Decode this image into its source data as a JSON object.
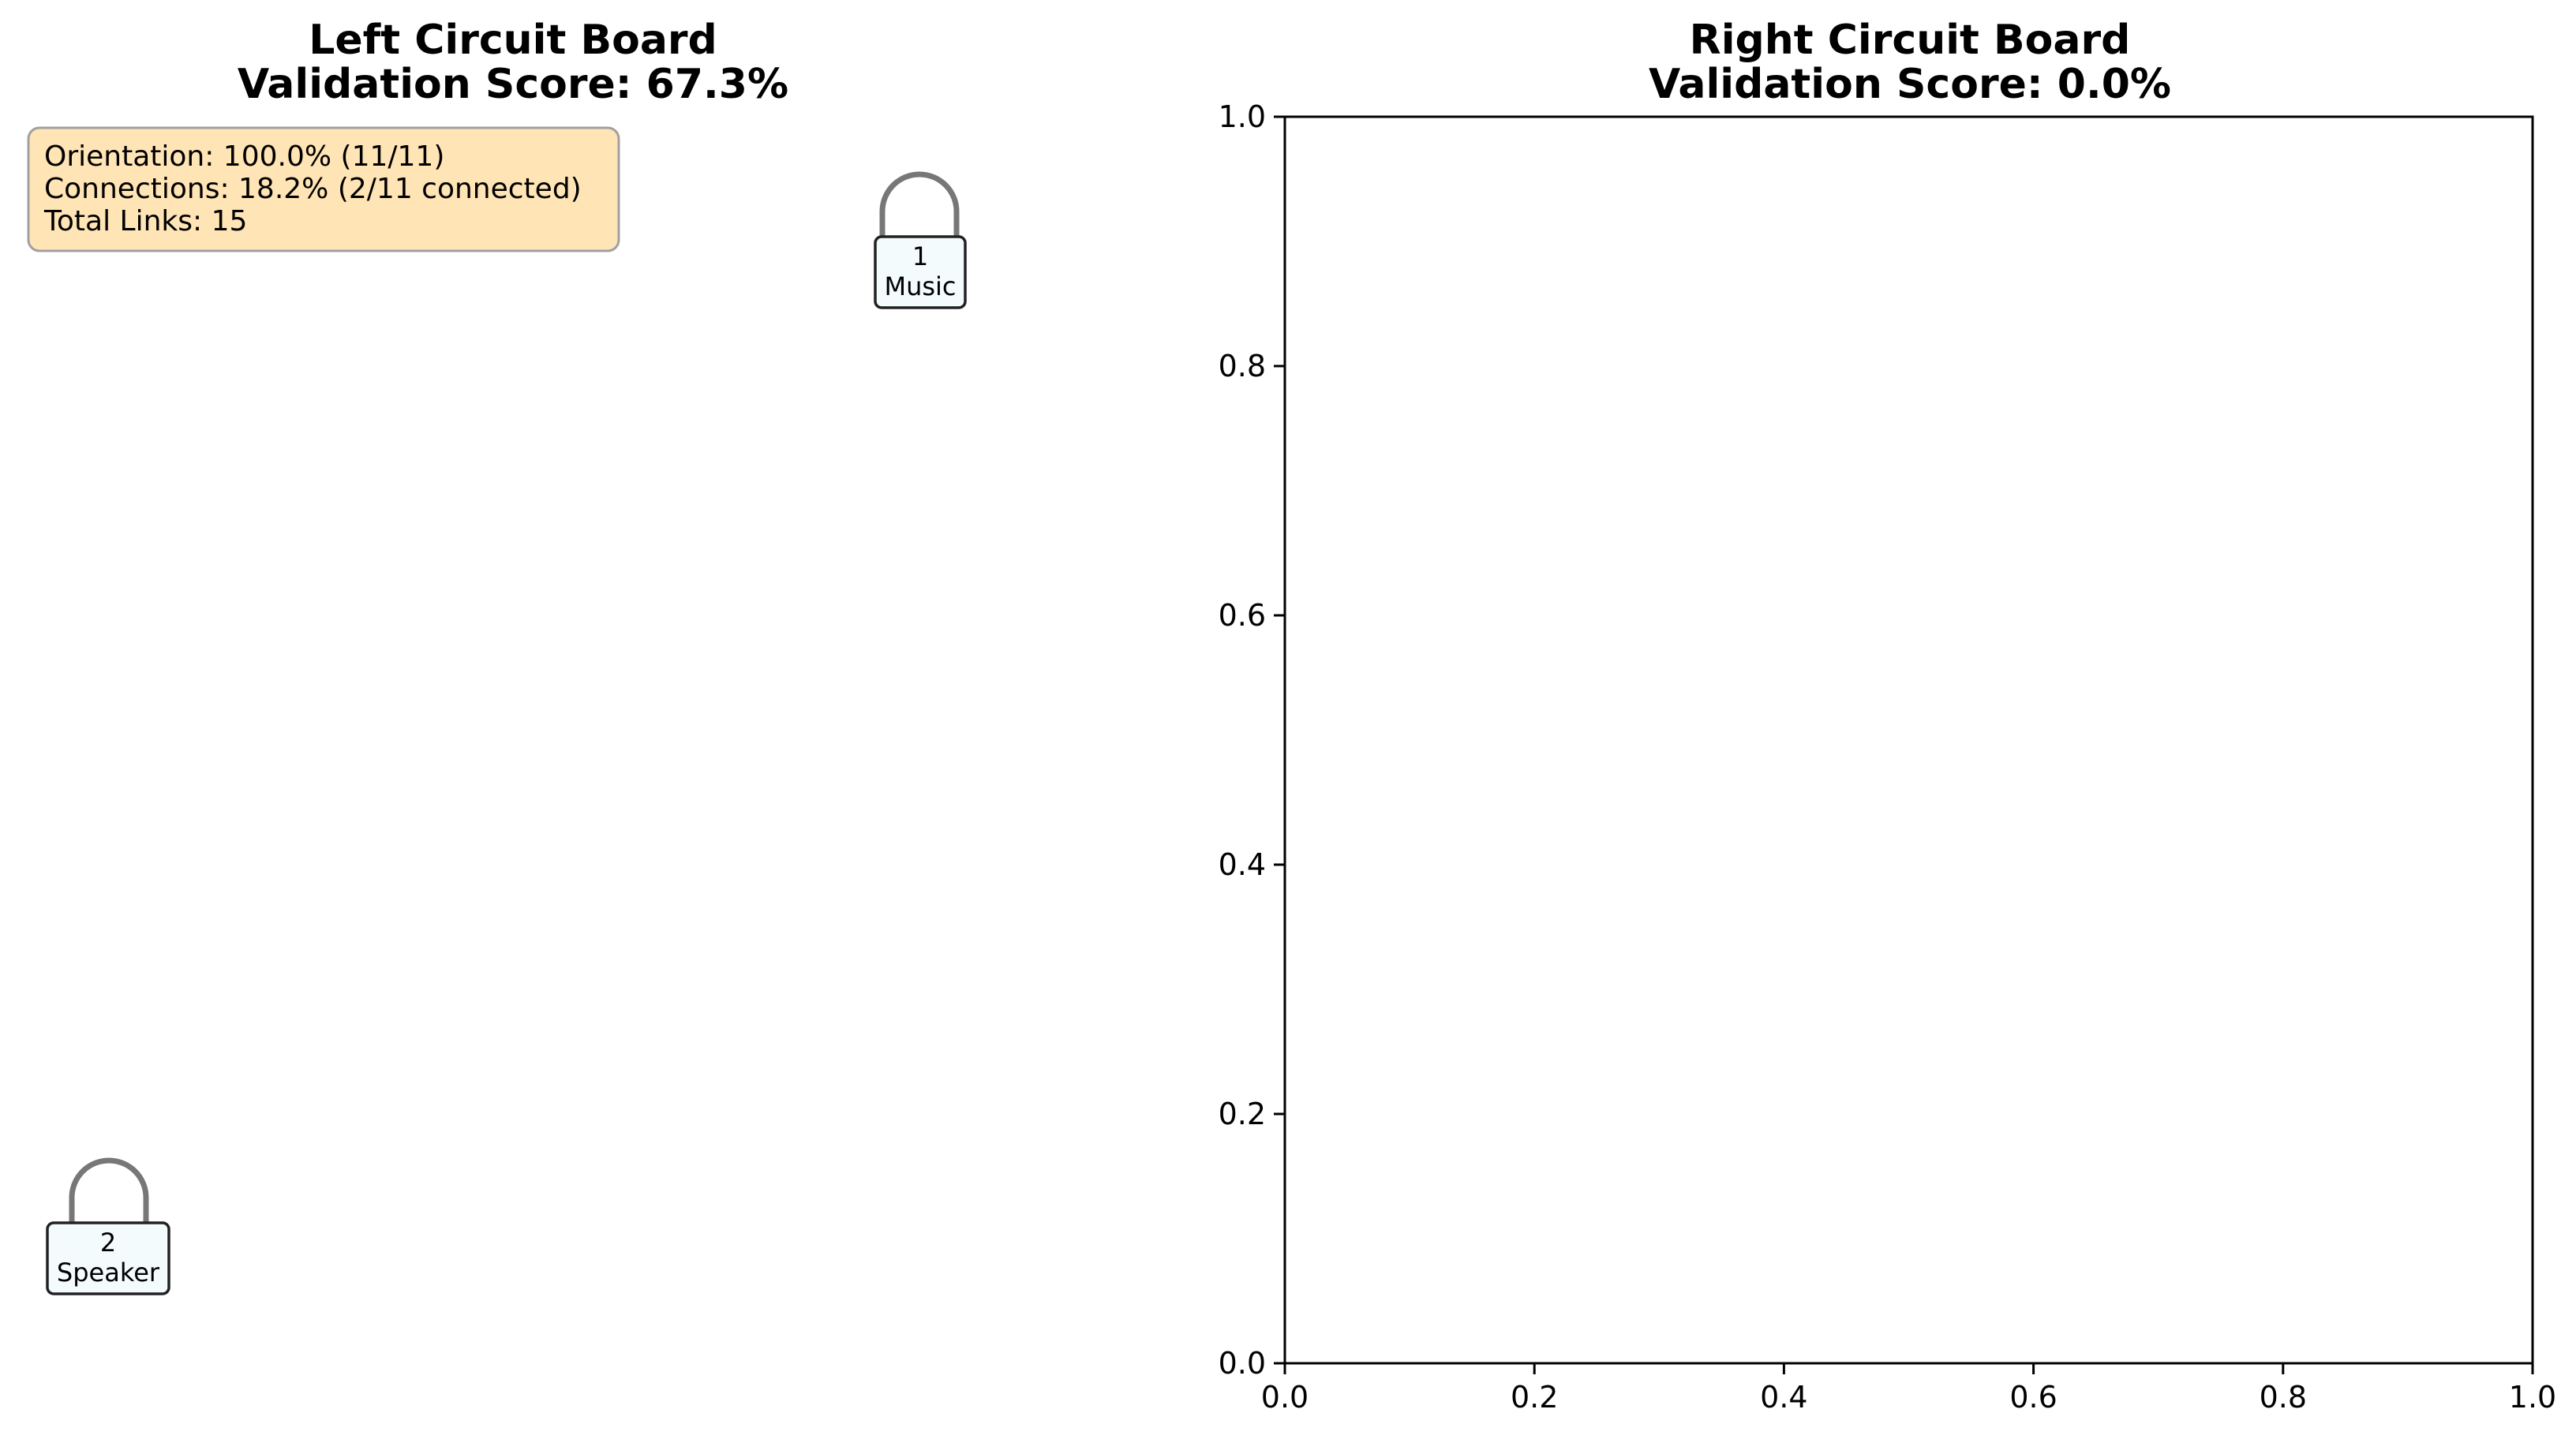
{
  "left_panel": {
    "title_line1": "Left Circuit Board",
    "title_line2": "Validation Score: 67.3%",
    "info_box": {
      "lines": [
        "Orientation: 100.0% (11/11)",
        "Connections: 18.2% (2/11 connected)",
        "Total Links: 15"
      ],
      "fill_color": "#ffe4b5"
    },
    "nodes": [
      {
        "id": "1",
        "label": "Music"
      },
      {
        "id": "2",
        "label": "Speaker"
      }
    ]
  },
  "right_panel": {
    "title_line1": "Right Circuit Board",
    "title_line2": "Validation Score: 0.0%"
  },
  "chart_data": [
    {
      "type": "diagram",
      "panel": "left",
      "title": "Left Circuit Board\nValidation Score: 67.3%",
      "axes_visible": false,
      "nodes": [
        {
          "id": "1",
          "label": "Music",
          "has_self_loop": true
        },
        {
          "id": "2",
          "label": "Speaker",
          "has_self_loop": true
        }
      ],
      "annotation": [
        "Orientation: 100.0% (11/11)",
        "Connections: 18.2% (2/11 connected)",
        "Total Links: 15"
      ]
    },
    {
      "type": "scatter",
      "panel": "right",
      "title": "Right Circuit Board\nValidation Score: 0.0%",
      "series": [],
      "xlim": [
        0,
        1
      ],
      "ylim": [
        0,
        1
      ],
      "xticks": [
        "0.0",
        "0.2",
        "0.4",
        "0.6",
        "0.8",
        "1.0"
      ],
      "yticks": [
        "0.0",
        "0.2",
        "0.4",
        "0.6",
        "0.8",
        "1.0"
      ],
      "grid": false
    }
  ]
}
